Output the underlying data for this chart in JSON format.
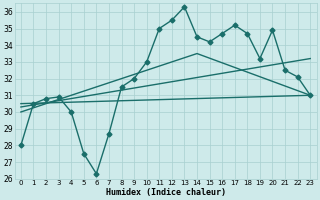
{
  "xlabel": "Humidex (Indice chaleur)",
  "x_ticks": [
    0,
    1,
    2,
    3,
    4,
    5,
    6,
    7,
    8,
    9,
    10,
    11,
    12,
    13,
    14,
    15,
    16,
    17,
    18,
    19,
    20,
    21,
    22,
    23
  ],
  "ylim": [
    26,
    36.5
  ],
  "xlim": [
    -0.5,
    23.5
  ],
  "yticks": [
    26,
    27,
    28,
    29,
    30,
    31,
    32,
    33,
    34,
    35,
    36
  ],
  "background_color": "#ceeaea",
  "grid_color": "#a8d0d0",
  "line_color": "#1a6e6a",
  "series": [
    {
      "x": [
        0,
        1,
        2,
        3,
        4,
        5,
        6,
        7,
        8,
        9,
        10,
        11,
        12,
        13,
        14,
        15,
        16,
        17,
        18,
        19,
        20,
        21,
        22,
        23
      ],
      "y": [
        28.0,
        30.5,
        30.8,
        30.9,
        30.0,
        27.5,
        26.3,
        28.7,
        31.5,
        32.0,
        33.0,
        35.0,
        35.5,
        36.3,
        34.5,
        34.2,
        34.7,
        35.2,
        34.7,
        33.2,
        34.9,
        32.5,
        32.1,
        31.0
      ],
      "marker": "D",
      "markersize": 2.5,
      "linewidth": 1.0
    },
    {
      "x": [
        0,
        23
      ],
      "y": [
        30.5,
        31.0
      ],
      "marker": null,
      "markersize": 0,
      "linewidth": 1.0
    },
    {
      "x": [
        0,
        23
      ],
      "y": [
        30.3,
        33.2
      ],
      "marker": null,
      "markersize": 0,
      "linewidth": 1.0
    },
    {
      "x": [
        0,
        14,
        23
      ],
      "y": [
        30.0,
        33.5,
        31.0
      ],
      "marker": null,
      "markersize": 0,
      "linewidth": 1.0
    }
  ]
}
